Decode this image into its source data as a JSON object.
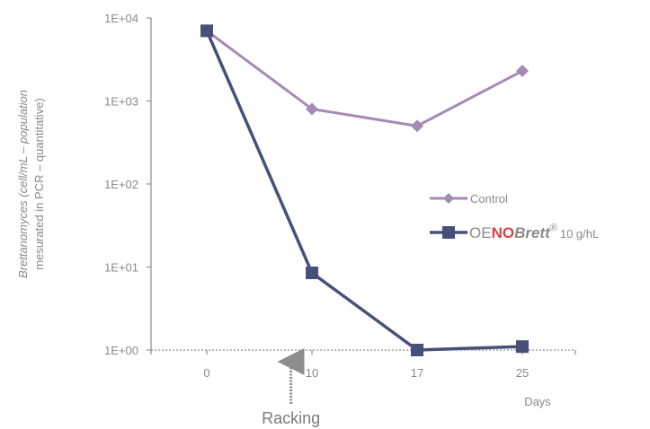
{
  "chart_data": {
    "type": "line",
    "x": [
      0,
      10,
      17,
      25
    ],
    "x_tick_labels": [
      "0",
      "10",
      "17",
      "25"
    ],
    "x_unit_label": "Days",
    "y_scale": "log",
    "ylim": [
      1,
      10000
    ],
    "y_tick_labels": [
      "1E+00",
      "1E+01",
      "1E+02",
      "1E+03",
      "1E+04"
    ],
    "ylabel_line1": "Brettanomyces (cell/mL – population",
    "ylabel_line2": "mesurated in PCR – quantitative)",
    "series": [
      {
        "name": "Control",
        "marker": "diamond",
        "color": "#a58ab5",
        "values": [
          7000,
          800,
          500,
          2300
        ]
      },
      {
        "name": "OENOBrett® 10 g/hL",
        "marker": "square",
        "color": "#47507a",
        "values": [
          7000,
          8.5,
          1,
          1.1
        ]
      }
    ],
    "legend": {
      "placement": "right",
      "control_label": "Control",
      "brand_part1": "OE",
      "brand_part2": "NO",
      "brand_part3": "Brett",
      "brand_reg": "®",
      "brand_dose": "10 g/hL",
      "brand_color_gray": "#8a8a8a",
      "brand_color_red": "#d8423f"
    },
    "annotation": {
      "label": "Racking",
      "at_x": 8,
      "color": "#8c8c8c"
    },
    "grid": false
  }
}
